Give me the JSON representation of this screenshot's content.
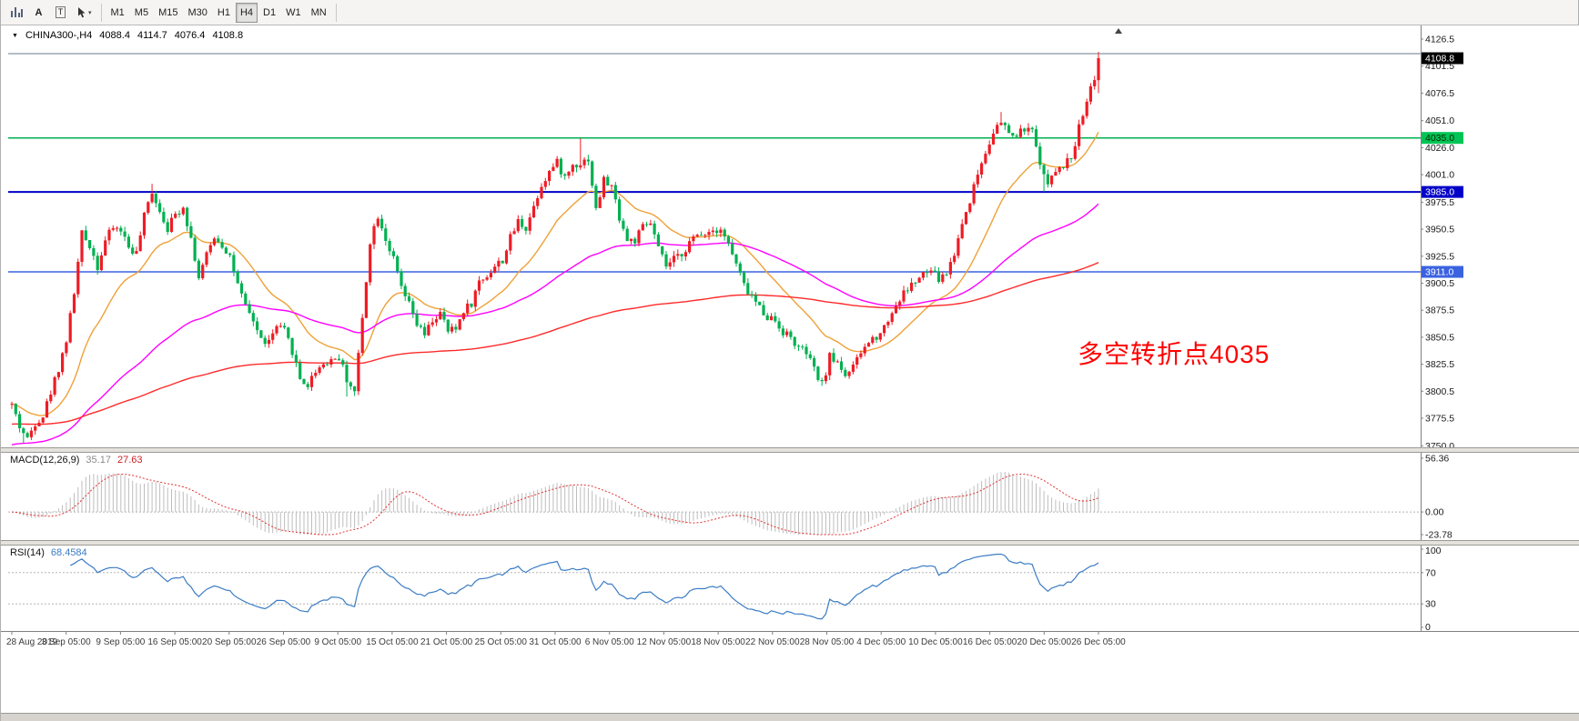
{
  "toolbar": {
    "tools": {
      "text": "A",
      "label": "T"
    },
    "icons": {
      "dropdown": "▾",
      "oneclick": "▼"
    },
    "timeframes": [
      "M1",
      "M5",
      "M15",
      "M30",
      "H1",
      "H4",
      "D1",
      "W1",
      "MN"
    ],
    "active_timeframe": "H4"
  },
  "chart": {
    "symbol_period": "CHINA300-,H4",
    "ohlc": {
      "open": "4088.4",
      "high": "4114.7",
      "low": "4076.4",
      "close": "4108.8"
    },
    "annotation": {
      "text": "多空转折点4035",
      "color": "#ff0000"
    },
    "current_price_badge": {
      "value": "4108.8",
      "bg": "#000000",
      "fg": "#ffffff"
    }
  },
  "indicators": {
    "macd": {
      "label": "MACD(12,26,9)",
      "main": "35.17",
      "signal": "27.63"
    },
    "rsi": {
      "label": "RSI(14)",
      "value": "68.4584"
    }
  },
  "chart_data": {
    "type": "candlestick",
    "symbol": "CHINA300-",
    "timeframe": "H4",
    "up_color": "#ee1c25",
    "down_color": "#00b050",
    "visible_bars": 280,
    "last_bar_ohlc": {
      "open": 4088.4,
      "high": 4114.7,
      "low": 4076.4,
      "close": 4108.8
    },
    "price_axis": {
      "max": 4126.5,
      "min": 3750.0,
      "ticks": [
        "4126.5",
        "4101.5",
        "4076.5",
        "4051.0",
        "4026.0",
        "4001.0",
        "3975.5",
        "3950.5",
        "3925.5",
        "3900.5",
        "3875.5",
        "3850.5",
        "3825.5",
        "3800.5",
        "3775.5",
        "3750.0"
      ]
    },
    "time_axis": [
      "28 Aug 2019",
      "3 Sep 05:00",
      "9 Sep 05:00",
      "16 Sep 05:00",
      "20 Sep 05:00",
      "26 Sep 05:00",
      "9 Oct 05:00",
      "15 Oct 05:00",
      "21 Oct 05:00",
      "25 Oct 05:00",
      "31 Oct 05:00",
      "6 Nov 05:00",
      "12 Nov 05:00",
      "18 Nov 05:00",
      "22 Nov 05:00",
      "28 Nov 05:00",
      "4 Dec 05:00",
      "10 Dec 05:00",
      "16 Dec 05:00",
      "20 Dec 05:00",
      "26 Dec 05:00"
    ],
    "horizontal_levels": [
      {
        "price": 4113.0,
        "color": "#6a7b8c",
        "width": 1,
        "badge": null
      },
      {
        "price": 4035.0,
        "color": "#00b050",
        "width": 1.5,
        "badge": "4035.0",
        "badge_bg": "#00c455",
        "badge_fg": "#002800"
      },
      {
        "price": 3985.0,
        "color": "#0000c8",
        "width": 2,
        "badge": "3985.0",
        "badge_bg": "#0000c8",
        "badge_fg": "#ffffff"
      },
      {
        "price": 3911.0,
        "color": "#3a62e0",
        "width": 1.5,
        "badge": "3911.0",
        "badge_bg": "#3a62e0",
        "badge_fg": "#ffffff"
      }
    ],
    "moving_averages": [
      {
        "name": "fast",
        "period": 21,
        "color": "#efa138",
        "seed": null
      },
      {
        "name": "medium",
        "period": 80,
        "color": "#ff00ff",
        "seed": 3750
      },
      {
        "name": "slow",
        "period": 240,
        "color": "#ff2a2a",
        "seed": 3770
      }
    ],
    "price_path_anchors": [
      [
        0,
        3788
      ],
      [
        2,
        3768
      ],
      [
        4,
        3756
      ],
      [
        6,
        3772
      ],
      [
        8,
        3778
      ],
      [
        10,
        3800
      ],
      [
        12,
        3822
      ],
      [
        14,
        3848
      ],
      [
        16,
        3892
      ],
      [
        18,
        3946
      ],
      [
        20,
        3936
      ],
      [
        22,
        3916
      ],
      [
        24,
        3940
      ],
      [
        26,
        3952
      ],
      [
        28,
        3950
      ],
      [
        30,
        3934
      ],
      [
        32,
        3928
      ],
      [
        34,
        3962
      ],
      [
        36,
        3986
      ],
      [
        38,
        3968
      ],
      [
        40,
        3952
      ],
      [
        42,
        3964
      ],
      [
        44,
        3972
      ],
      [
        46,
        3942
      ],
      [
        48,
        3906
      ],
      [
        50,
        3926
      ],
      [
        52,
        3944
      ],
      [
        54,
        3936
      ],
      [
        56,
        3926
      ],
      [
        58,
        3898
      ],
      [
        60,
        3878
      ],
      [
        62,
        3866
      ],
      [
        64,
        3848
      ],
      [
        66,
        3846
      ],
      [
        68,
        3860
      ],
      [
        70,
        3856
      ],
      [
        72,
        3838
      ],
      [
        74,
        3812
      ],
      [
        76,
        3806
      ],
      [
        78,
        3820
      ],
      [
        80,
        3826
      ],
      [
        82,
        3830
      ],
      [
        84,
        3832
      ],
      [
        86,
        3812
      ],
      [
        88,
        3800
      ],
      [
        90,
        3868
      ],
      [
        92,
        3940
      ],
      [
        94,
        3964
      ],
      [
        96,
        3942
      ],
      [
        98,
        3922
      ],
      [
        100,
        3896
      ],
      [
        102,
        3880
      ],
      [
        104,
        3862
      ],
      [
        106,
        3852
      ],
      [
        108,
        3866
      ],
      [
        110,
        3872
      ],
      [
        112,
        3856
      ],
      [
        114,
        3858
      ],
      [
        116,
        3876
      ],
      [
        118,
        3882
      ],
      [
        120,
        3902
      ],
      [
        122,
        3908
      ],
      [
        124,
        3916
      ],
      [
        126,
        3922
      ],
      [
        128,
        3942
      ],
      [
        130,
        3958
      ],
      [
        132,
        3952
      ],
      [
        134,
        3972
      ],
      [
        136,
        3992
      ],
      [
        138,
        4004
      ],
      [
        140,
        4012
      ],
      [
        142,
        3998
      ],
      [
        144,
        4010
      ],
      [
        146,
        4012
      ],
      [
        148,
        4016
      ],
      [
        150,
        3968
      ],
      [
        152,
        3996
      ],
      [
        154,
        3990
      ],
      [
        156,
        3962
      ],
      [
        158,
        3940
      ],
      [
        160,
        3940
      ],
      [
        162,
        3952
      ],
      [
        164,
        3956
      ],
      [
        166,
        3932
      ],
      [
        168,
        3916
      ],
      [
        170,
        3922
      ],
      [
        172,
        3928
      ],
      [
        174,
        3938
      ],
      [
        176,
        3944
      ],
      [
        178,
        3948
      ],
      [
        180,
        3950
      ],
      [
        182,
        3952
      ],
      [
        184,
        3936
      ],
      [
        186,
        3918
      ],
      [
        188,
        3898
      ],
      [
        190,
        3888
      ],
      [
        192,
        3878
      ],
      [
        194,
        3870
      ],
      [
        196,
        3866
      ],
      [
        198,
        3856
      ],
      [
        200,
        3850
      ],
      [
        202,
        3840
      ],
      [
        204,
        3836
      ],
      [
        206,
        3820
      ],
      [
        208,
        3806
      ],
      [
        210,
        3832
      ],
      [
        212,
        3828
      ],
      [
        214,
        3816
      ],
      [
        216,
        3822
      ],
      [
        218,
        3836
      ],
      [
        220,
        3846
      ],
      [
        222,
        3852
      ],
      [
        224,
        3860
      ],
      [
        226,
        3874
      ],
      [
        228,
        3886
      ],
      [
        230,
        3896
      ],
      [
        232,
        3902
      ],
      [
        234,
        3908
      ],
      [
        236,
        3912
      ],
      [
        238,
        3904
      ],
      [
        240,
        3910
      ],
      [
        242,
        3928
      ],
      [
        244,
        3956
      ],
      [
        246,
        3978
      ],
      [
        248,
        4002
      ],
      [
        250,
        4022
      ],
      [
        252,
        4042
      ],
      [
        254,
        4048
      ],
      [
        256,
        4040
      ],
      [
        258,
        4036
      ],
      [
        260,
        4044
      ],
      [
        262,
        4040
      ],
      [
        264,
        4014
      ],
      [
        265,
        3998
      ],
      [
        266,
        3996
      ],
      [
        268,
        4002
      ],
      [
        270,
        4008
      ],
      [
        272,
        4018
      ],
      [
        274,
        4044
      ],
      [
        276,
        4072
      ],
      [
        278,
        4092
      ],
      [
        279,
        4106
      ]
    ],
    "wick_overrides": [
      {
        "i": 3,
        "l": 3752.5
      },
      {
        "i": 36,
        "h": 3992.5
      },
      {
        "i": 86,
        "l": 3795.5
      },
      {
        "i": 146,
        "h": 4034.5
      },
      {
        "i": 254,
        "h": 4059.0
      },
      {
        "i": 265,
        "l": 3985.3
      }
    ],
    "macd_panel": {
      "max": 56.36,
      "min": -23.78,
      "axis": [
        "56.36",
        "0.00",
        "-23.78"
      ],
      "hist_color": "#bdbdbd",
      "signal_color": "#e03030"
    },
    "rsi_panel": {
      "max": 100,
      "min": 0,
      "axis": [
        "100",
        "70",
        "30",
        "0"
      ],
      "level_lines": [
        70,
        30
      ],
      "line_color": "#3b7cc4"
    }
  }
}
